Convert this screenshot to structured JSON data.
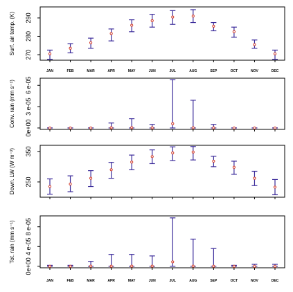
{
  "chart_data": [
    {
      "type": "errorbar",
      "ylabel": "Surf. air temp. (K)",
      "categories": [
        "JAN",
        "FEB",
        "MAR",
        "APR",
        "MAY",
        "JUN",
        "JUL",
        "AUG",
        "SEP",
        "OCT",
        "NOV",
        "DEC"
      ],
      "yticks": [
        {
          "v": 270,
          "label": "270"
        },
        {
          "v": 280,
          "label": "280"
        },
        {
          "v": 290,
          "label": "290"
        }
      ],
      "ylim": [
        267,
        296
      ],
      "values": [
        270.5,
        273.5,
        276.5,
        281.5,
        286.0,
        288.5,
        290.5,
        291.0,
        285.5,
        282.5,
        275.5,
        270.5
      ],
      "low": [
        267.5,
        271.0,
        273.5,
        277.5,
        282.5,
        285.0,
        286.5,
        287.5,
        283.0,
        279.5,
        273.5,
        267.5
      ],
      "high": [
        272.5,
        276.0,
        279.0,
        284.0,
        289.0,
        292.0,
        294.0,
        294.5,
        287.5,
        285.0,
        278.0,
        272.5
      ],
      "show_xticks": true
    },
    {
      "type": "errorbar",
      "ylabel": "Conv. rain (mm s⁻¹)",
      "categories": [
        "JAN",
        "FEB",
        "MAR",
        "APR",
        "MAY",
        "JUN",
        "JUL",
        "AUG",
        "SEP",
        "OCT",
        "NOV",
        "DEC"
      ],
      "yticks": [
        {
          "v": 0,
          "label": "0e+00"
        },
        {
          "v": 3e-05,
          "label": "3 e-05"
        },
        {
          "v": 6e-05,
          "label": "6 e-05"
        }
      ],
      "ylim": [
        -2e-06,
        7e-05
      ],
      "values": [
        0,
        0,
        0,
        3e-07,
        5e-07,
        2e-07,
        6e-06,
        3e-07,
        2e-07,
        0,
        0,
        0
      ],
      "low": [
        0,
        0,
        0,
        0,
        0,
        0,
        0,
        0,
        0,
        0,
        0,
        0
      ],
      "high": [
        0,
        0,
        0,
        7e-06,
        1.3e-05,
        5e-06,
        6.8e-05,
        3.9e-05,
        5e-06,
        0,
        0,
        0
      ],
      "show_xticks": false
    },
    {
      "type": "errorbar",
      "ylabel": "Down. LW (W m⁻²)",
      "categories": [
        "JAN",
        "FEB",
        "MAR",
        "APR",
        "MAY",
        "JUN",
        "JUL",
        "AUG",
        "SEP",
        "OCT",
        "NOV",
        "DEC"
      ],
      "yticks": [
        {
          "v": 250,
          "label": "250"
        },
        {
          "v": 350,
          "label": "350"
        }
      ],
      "ylim": [
        200,
        370
      ],
      "values": [
        235,
        243,
        262,
        290,
        315,
        333,
        345,
        348,
        318,
        298,
        262,
        233
      ],
      "low": [
        210,
        218,
        235,
        262,
        290,
        310,
        320,
        322,
        300,
        275,
        238,
        208
      ],
      "high": [
        260,
        270,
        287,
        314,
        338,
        355,
        365,
        366,
        334,
        318,
        285,
        258
      ],
      "show_xticks": false
    },
    {
      "type": "errorbar",
      "ylabel": "Tot. rain (mm s⁻¹)",
      "categories": [
        "JAN",
        "FEB",
        "MAR",
        "APR",
        "MAY",
        "JUN",
        "JUL",
        "AUG",
        "SEP",
        "OCT",
        "NOV",
        "DEC"
      ],
      "yticks": [
        {
          "v": 0,
          "label": "0e+00"
        },
        {
          "v": 4e-05,
          "label": "4 e-05"
        },
        {
          "v": 8e-05,
          "label": "8 e-05"
        }
      ],
      "ylim": [
        -3e-06,
        0.000102
      ],
      "values": [
        0,
        0,
        3e-07,
        2e-07,
        3e-07,
        3e-07,
        9e-06,
        3e-07,
        2e-07,
        0,
        0,
        0
      ],
      "low": [
        0,
        0,
        0,
        0,
        0,
        0,
        0,
        0,
        0,
        0,
        0,
        0
      ],
      "high": [
        2e-06,
        2e-06,
        1e-05,
        2.4e-05,
        2.4e-05,
        2.1e-05,
        9.8e-05,
        5.5e-05,
        3.6e-05,
        2e-06,
        4e-06,
        4e-06
      ],
      "show_xticks": true
    }
  ]
}
